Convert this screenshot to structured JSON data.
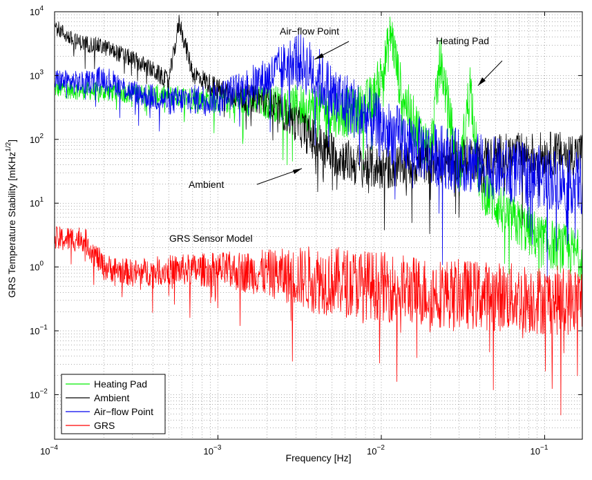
{
  "chart_data": {
    "type": "line",
    "title": "",
    "xlabel": "Frequency [Hz]",
    "ylabel": "GRS Temperature Stability [mKHz",
    "ylabel_sup": "1/2",
    "ylabel_close": "]",
    "x_scale": "log",
    "y_scale": "log",
    "xlim": [
      0.0001,
      0.17
    ],
    "ylim": [
      0.002,
      10000
    ],
    "grid": true,
    "x_ticks": [
      {
        "value": 0.0001,
        "base": "10",
        "exp": "−4"
      },
      {
        "value": 0.001,
        "base": "10",
        "exp": "−3"
      },
      {
        "value": 0.01,
        "base": "10",
        "exp": "−2"
      },
      {
        "value": 0.1,
        "base": "10",
        "exp": "−1"
      }
    ],
    "y_ticks": [
      {
        "value": 0.01,
        "base": "10",
        "exp": "−2"
      },
      {
        "value": 0.1,
        "base": "10",
        "exp": "−1"
      },
      {
        "value": 1,
        "base": "10",
        "exp": "0"
      },
      {
        "value": 10,
        "base": "10",
        "exp": "1"
      },
      {
        "value": 100,
        "base": "10",
        "exp": "2"
      },
      {
        "value": 1000,
        "base": "10",
        "exp": "3"
      },
      {
        "value": 10000,
        "base": "10",
        "exp": "4"
      }
    ],
    "legend_position": "bottom-left",
    "series": [
      {
        "name": "Heating Pad",
        "color": "#00ee00",
        "points": [
          [
            0.0001,
            620
          ],
          [
            0.0002,
            560
          ],
          [
            0.0005,
            480
          ],
          [
            0.001,
            420
          ],
          [
            0.002,
            380
          ],
          [
            0.003,
            330
          ],
          [
            0.005,
            270
          ],
          [
            0.007,
            260
          ],
          [
            0.009,
            450
          ],
          [
            0.0105,
            1500
          ],
          [
            0.0115,
            4800
          ],
          [
            0.013,
            700
          ],
          [
            0.015,
            250
          ],
          [
            0.02,
            60
          ],
          [
            0.023,
            1900
          ],
          [
            0.03,
            25
          ],
          [
            0.035,
            780
          ],
          [
            0.04,
            20
          ],
          [
            0.06,
            6
          ],
          [
            0.1,
            2.5
          ],
          [
            0.17,
            1.5
          ]
        ],
        "noise_decades": 0.4
      },
      {
        "name": "Ambient",
        "color": "#000000",
        "points": [
          [
            0.0001,
            6000
          ],
          [
            0.00013,
            3500
          ],
          [
            0.0002,
            2800
          ],
          [
            0.0003,
            1800
          ],
          [
            0.0004,
            1200
          ],
          [
            0.0005,
            800
          ],
          [
            0.00058,
            7000
          ],
          [
            0.0007,
            1100
          ],
          [
            0.001,
            600
          ],
          [
            0.0015,
            450
          ],
          [
            0.002,
            400
          ],
          [
            0.003,
            180
          ],
          [
            0.004,
            90
          ],
          [
            0.005,
            60
          ],
          [
            0.007,
            40
          ],
          [
            0.01,
            35
          ],
          [
            0.02,
            45
          ],
          [
            0.05,
            55
          ],
          [
            0.1,
            60
          ],
          [
            0.17,
            60
          ]
        ],
        "noise_decades": 0.35
      },
      {
        "name": "Air−flow Point",
        "color": "#0000ee",
        "points": [
          [
            0.0001,
            850
          ],
          [
            0.00015,
            750
          ],
          [
            0.0002,
            950
          ],
          [
            0.0003,
            550
          ],
          [
            0.0005,
            400
          ],
          [
            0.001,
            450
          ],
          [
            0.002,
            900
          ],
          [
            0.003,
            1900
          ],
          [
            0.004,
            1000
          ],
          [
            0.005,
            500
          ],
          [
            0.007,
            300
          ],
          [
            0.01,
            150
          ],
          [
            0.02,
            60
          ],
          [
            0.05,
            35
          ],
          [
            0.1,
            25
          ],
          [
            0.17,
            20
          ]
        ],
        "noise_decades": 0.5
      },
      {
        "name": "GRS",
        "color": "#ff0000",
        "points": [
          [
            0.0001,
            2.7
          ],
          [
            0.00015,
            2.8
          ],
          [
            0.0002,
            1.0
          ],
          [
            0.0003,
            0.8
          ],
          [
            0.0005,
            0.9
          ],
          [
            0.001,
            0.9
          ],
          [
            0.002,
            0.8
          ],
          [
            0.003,
            0.7
          ],
          [
            0.005,
            0.6
          ],
          [
            0.01,
            0.5
          ],
          [
            0.02,
            0.4
          ],
          [
            0.05,
            0.35
          ],
          [
            0.1,
            0.3
          ],
          [
            0.17,
            0.3
          ]
        ],
        "noise_decades": 0.55
      }
    ],
    "annotations": [
      {
        "id": "airflow",
        "text": "Air−flow Point"
      },
      {
        "id": "heating",
        "text": "Heating Pad"
      },
      {
        "id": "ambient",
        "text": "Ambient"
      },
      {
        "id": "grs",
        "text": "GRS Sensor Model"
      }
    ]
  }
}
